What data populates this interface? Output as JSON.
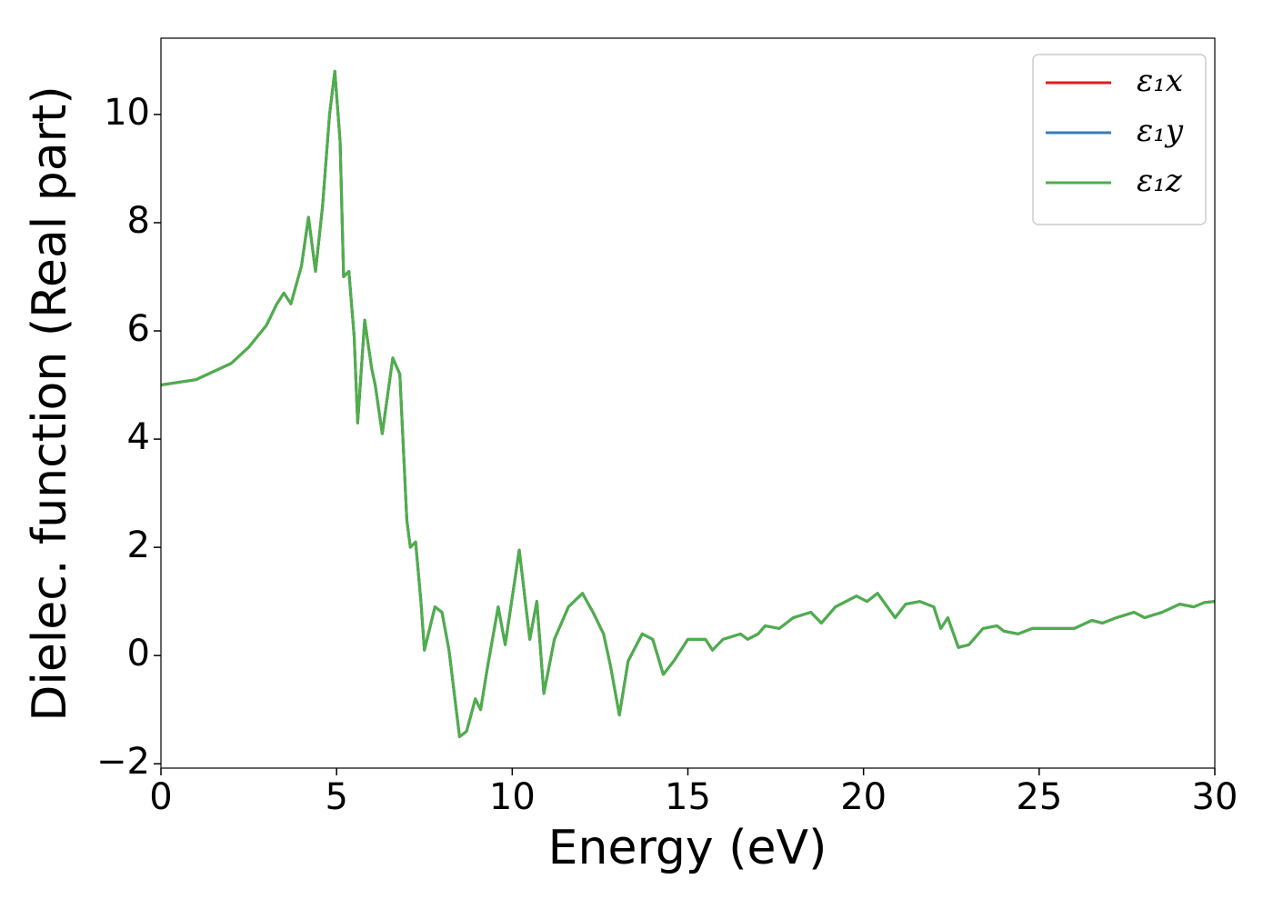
{
  "chart_data": {
    "type": "line",
    "xlabel": "Energy (eV)",
    "ylabel": "Dielec. function (Real part)",
    "x": [
      0,
      1,
      2,
      2.5,
      3,
      3.3,
      3.5,
      3.7,
      4.0,
      4.2,
      4.4,
      4.6,
      4.8,
      4.95,
      5.1,
      5.2,
      5.35,
      5.5,
      5.6,
      5.8,
      6.0,
      6.1,
      6.3,
      6.6,
      6.8,
      7.0,
      7.1,
      7.25,
      7.4,
      7.5,
      7.8,
      8.0,
      8.2,
      8.5,
      8.7,
      8.95,
      9.1,
      9.3,
      9.6,
      9.8,
      10.2,
      10.5,
      10.7,
      10.9,
      11.2,
      11.6,
      12.0,
      12.3,
      12.6,
      12.8,
      13.05,
      13.3,
      13.7,
      14.0,
      14.3,
      14.6,
      15.0,
      15.5,
      15.7,
      16.0,
      16.5,
      16.7,
      17.0,
      17.2,
      17.6,
      18.0,
      18.5,
      18.8,
      19.2,
      19.8,
      20.1,
      20.4,
      20.9,
      21.2,
      21.6,
      22.0,
      22.2,
      22.4,
      22.7,
      23.0,
      23.4,
      23.8,
      24.0,
      24.4,
      24.8,
      25.5,
      26.0,
      26.5,
      26.8,
      27.2,
      27.7,
      28.0,
      28.5,
      29.0,
      29.4,
      29.7,
      30
    ],
    "series": [
      {
        "name": "ε₁x",
        "color": "#e41a1c",
        "values": [
          5.0,
          5.1,
          5.4,
          5.7,
          6.1,
          6.5,
          6.7,
          6.5,
          7.2,
          8.1,
          7.1,
          8.3,
          10.0,
          10.8,
          9.5,
          7.0,
          7.1,
          5.9,
          4.3,
          6.2,
          5.3,
          5.0,
          4.1,
          5.5,
          5.2,
          2.5,
          2.0,
          2.1,
          1.0,
          0.1,
          0.9,
          0.8,
          0.1,
          -1.5,
          -1.4,
          -0.8,
          -1.0,
          -0.2,
          0.9,
          0.2,
          1.95,
          0.3,
          1.0,
          -0.7,
          0.3,
          0.9,
          1.15,
          0.8,
          0.4,
          -0.2,
          -1.1,
          -0.1,
          0.4,
          0.3,
          -0.35,
          -0.1,
          0.3,
          0.3,
          0.1,
          0.3,
          0.4,
          0.3,
          0.4,
          0.55,
          0.5,
          0.7,
          0.8,
          0.6,
          0.9,
          1.1,
          1.0,
          1.15,
          0.7,
          0.95,
          1.0,
          0.9,
          0.5,
          0.7,
          0.15,
          0.2,
          0.5,
          0.55,
          0.45,
          0.4,
          0.5,
          0.5,
          0.5,
          0.65,
          0.6,
          0.7,
          0.8,
          0.7,
          0.8,
          0.95,
          0.9,
          0.98,
          1.0
        ]
      },
      {
        "name": "ε₁y",
        "color": "#377eb8",
        "values": [
          5.0,
          5.1,
          5.4,
          5.7,
          6.1,
          6.5,
          6.7,
          6.5,
          7.2,
          8.1,
          7.1,
          8.3,
          10.0,
          10.8,
          9.5,
          7.0,
          7.1,
          5.9,
          4.3,
          6.2,
          5.3,
          5.0,
          4.1,
          5.5,
          5.2,
          2.5,
          2.0,
          2.1,
          1.0,
          0.1,
          0.9,
          0.8,
          0.1,
          -1.5,
          -1.4,
          -0.8,
          -1.0,
          -0.2,
          0.9,
          0.2,
          1.95,
          0.3,
          1.0,
          -0.7,
          0.3,
          0.9,
          1.15,
          0.8,
          0.4,
          -0.2,
          -1.1,
          -0.1,
          0.4,
          0.3,
          -0.35,
          -0.1,
          0.3,
          0.3,
          0.1,
          0.3,
          0.4,
          0.3,
          0.4,
          0.55,
          0.5,
          0.7,
          0.8,
          0.6,
          0.9,
          1.1,
          1.0,
          1.15,
          0.7,
          0.95,
          1.0,
          0.9,
          0.5,
          0.7,
          0.15,
          0.2,
          0.5,
          0.55,
          0.45,
          0.4,
          0.5,
          0.5,
          0.5,
          0.65,
          0.6,
          0.7,
          0.8,
          0.7,
          0.8,
          0.95,
          0.9,
          0.98,
          1.0
        ]
      },
      {
        "name": "ε₁z",
        "color": "#4daf4a",
        "values": [
          5.0,
          5.1,
          5.4,
          5.7,
          6.1,
          6.5,
          6.7,
          6.5,
          7.2,
          8.1,
          7.1,
          8.3,
          10.0,
          10.8,
          9.5,
          7.0,
          7.1,
          5.9,
          4.3,
          6.2,
          5.3,
          5.0,
          4.1,
          5.5,
          5.2,
          2.5,
          2.0,
          2.1,
          1.0,
          0.1,
          0.9,
          0.8,
          0.1,
          -1.5,
          -1.4,
          -0.8,
          -1.0,
          -0.2,
          0.9,
          0.2,
          1.95,
          0.3,
          1.0,
          -0.7,
          0.3,
          0.9,
          1.15,
          0.8,
          0.4,
          -0.2,
          -1.1,
          -0.1,
          0.4,
          0.3,
          -0.35,
          -0.1,
          0.3,
          0.3,
          0.1,
          0.3,
          0.4,
          0.3,
          0.4,
          0.55,
          0.5,
          0.7,
          0.8,
          0.6,
          0.9,
          1.1,
          1.0,
          1.15,
          0.7,
          0.95,
          1.0,
          0.9,
          0.5,
          0.7,
          0.15,
          0.2,
          0.5,
          0.55,
          0.45,
          0.4,
          0.5,
          0.5,
          0.5,
          0.65,
          0.6,
          0.7,
          0.8,
          0.7,
          0.8,
          0.95,
          0.9,
          0.98,
          1.0
        ]
      }
    ],
    "xlim": [
      0,
      30
    ],
    "xticks": [
      0,
      5,
      10,
      15,
      20,
      25,
      30
    ],
    "ylim": [
      -2.08,
      11.41
    ],
    "yticks": [
      {
        "value": -2,
        "label": "−2"
      },
      0,
      2,
      4,
      6,
      8,
      10
    ],
    "legend": "upper right",
    "grid": false
  }
}
